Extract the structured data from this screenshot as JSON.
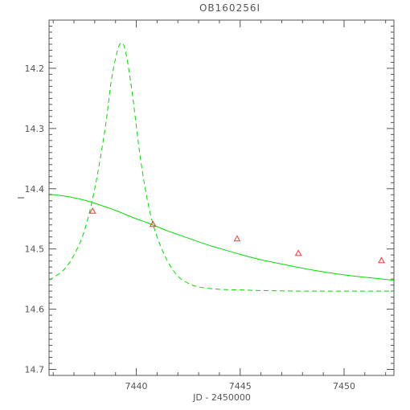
{
  "chart_data": {
    "type": "scatter",
    "title": "OB160256I",
    "xlabel": "JD - 2450000",
    "ylabel": "I",
    "xlim": [
      7435.8,
      7452.4
    ],
    "ylim": [
      14.71,
      14.12
    ],
    "y_inverted": true,
    "x_ticks": [
      7440,
      7445,
      7450
    ],
    "y_ticks": [
      14.2,
      14.3,
      14.4,
      14.5,
      14.6,
      14.7
    ],
    "x_tick_labels": [
      "7440",
      "7445",
      "7450"
    ],
    "y_tick_labels": [
      "14.2",
      "14.3",
      "14.4",
      "14.5",
      "14.6",
      "14.7"
    ],
    "grid": false,
    "points": {
      "marker": "triangle",
      "color": "#ff3333",
      "x": [
        7437.9,
        7440.8,
        7444.85,
        7447.8,
        7451.8
      ],
      "y": [
        14.437,
        14.459,
        14.483,
        14.507,
        14.519
      ]
    },
    "curves": [
      {
        "style": "solid",
        "color": "#00dd00",
        "x": [
          7435.8,
          7436.5,
          7437.0,
          7437.5,
          7438.0,
          7438.5,
          7439.0,
          7439.5,
          7440.0,
          7440.5,
          7441.0,
          7441.5,
          7442.0,
          7442.5,
          7443.0,
          7443.5,
          7444.0,
          7444.5,
          7445.0,
          7446.0,
          7447.0,
          7448.0,
          7449.0,
          7450.0,
          7451.0,
          7452.4
        ],
        "y": [
          14.409,
          14.412,
          14.415,
          14.419,
          14.424,
          14.43,
          14.436,
          14.443,
          14.45,
          14.456,
          14.463,
          14.47,
          14.476,
          14.482,
          14.488,
          14.494,
          14.499,
          14.504,
          14.509,
          14.518,
          14.525,
          14.532,
          14.538,
          14.543,
          14.547,
          14.552
        ]
      },
      {
        "style": "dashed",
        "color": "#00dd00",
        "x": [
          7435.8,
          7436.5,
          7437.0,
          7437.5,
          7438.0,
          7438.5,
          7438.8,
          7439.1,
          7439.3,
          7439.5,
          7439.8,
          7440.2,
          7440.6,
          7441.0,
          7441.5,
          7442.0,
          7442.5,
          7443.0,
          7444.0,
          7445.0,
          7446.0,
          7448.0,
          7450.0,
          7452.4
        ],
        "y": [
          14.552,
          14.535,
          14.51,
          14.47,
          14.4,
          14.3,
          14.22,
          14.17,
          14.158,
          14.175,
          14.24,
          14.35,
          14.43,
          14.48,
          14.52,
          14.545,
          14.557,
          14.563,
          14.567,
          14.568,
          14.569,
          14.57,
          14.57,
          14.57
        ]
      }
    ]
  }
}
